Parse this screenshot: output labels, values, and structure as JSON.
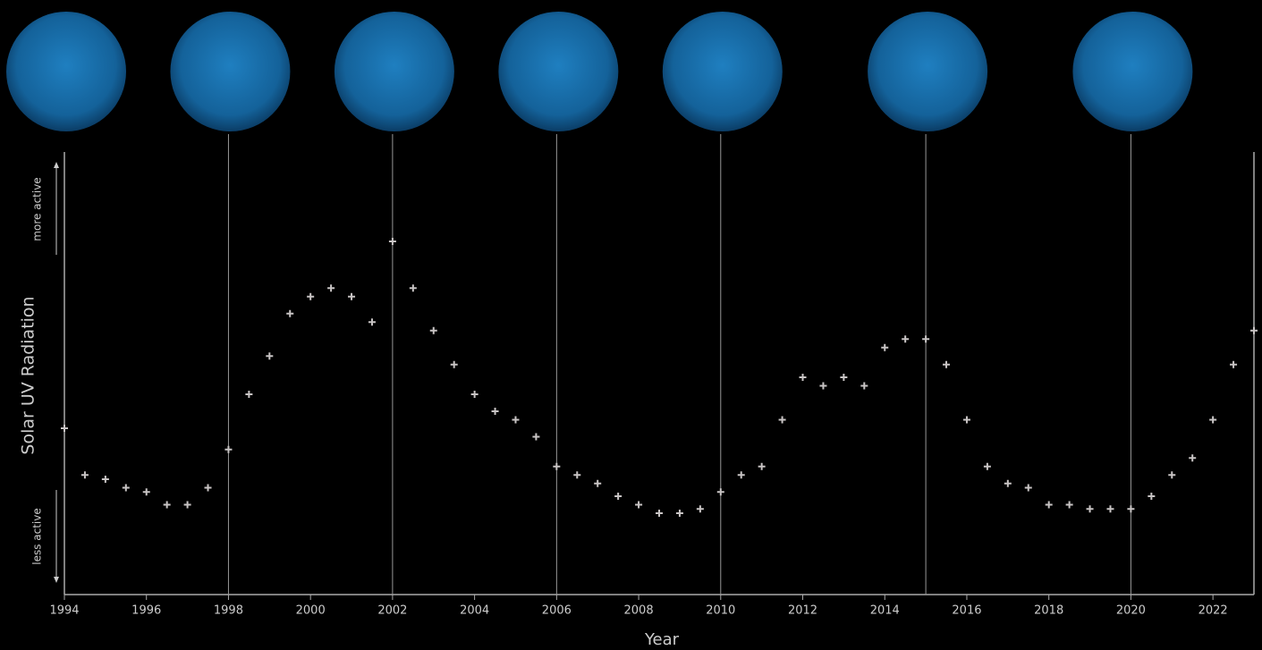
{
  "chart_data": {
    "type": "scatter",
    "x_label": "Year",
    "y_label": "Solar UV Radiation",
    "y_high_label": "more active",
    "y_low_label": "less active",
    "xlim": [
      1994,
      2023
    ],
    "ylim": [
      0,
      100
    ],
    "xticks": [
      1994,
      1996,
      1998,
      2000,
      2002,
      2004,
      2006,
      2008,
      2010,
      2012,
      2014,
      2016,
      2018,
      2020,
      2022
    ],
    "observations": [
      1994,
      1998,
      2002,
      2006,
      2010,
      2015,
      2020
    ],
    "color": "#c8c4c4",
    "x": [
      1994.0,
      1994.5,
      1995.0,
      1995.5,
      1996.0,
      1996.5,
      1997.0,
      1997.5,
      1998.0,
      1998.5,
      1999.0,
      1999.5,
      2000.0,
      2000.5,
      2001.0,
      2001.5,
      2002.0,
      2002.5,
      2003.0,
      2003.5,
      2004.0,
      2004.5,
      2005.0,
      2005.5,
      2006.0,
      2006.5,
      2007.0,
      2007.5,
      2008.0,
      2008.5,
      2009.0,
      2009.5,
      2010.0,
      2010.5,
      2011.0,
      2011.5,
      2012.0,
      2012.5,
      2013.0,
      2013.5,
      2014.0,
      2014.5,
      2015.0,
      2015.5,
      2016.0,
      2016.5,
      2017.0,
      2017.5,
      2018.0,
      2018.5,
      2019.0,
      2019.5,
      2020.0,
      2020.5,
      2021.0,
      2021.5,
      2022.0,
      2022.5,
      2023.0
    ],
    "values": [
      36,
      25,
      24,
      22,
      21,
      18,
      18,
      22,
      31,
      44,
      53,
      63,
      67,
      69,
      67,
      61,
      80,
      69,
      59,
      51,
      44,
      40,
      38,
      34,
      27,
      25,
      23,
      20,
      18,
      16,
      16,
      17,
      21,
      25,
      27,
      38,
      48,
      46,
      48,
      46,
      55,
      57,
      57,
      51,
      38,
      27,
      23,
      22,
      18,
      18,
      17,
      17,
      17,
      20,
      25,
      29,
      38,
      51,
      59
    ]
  }
}
